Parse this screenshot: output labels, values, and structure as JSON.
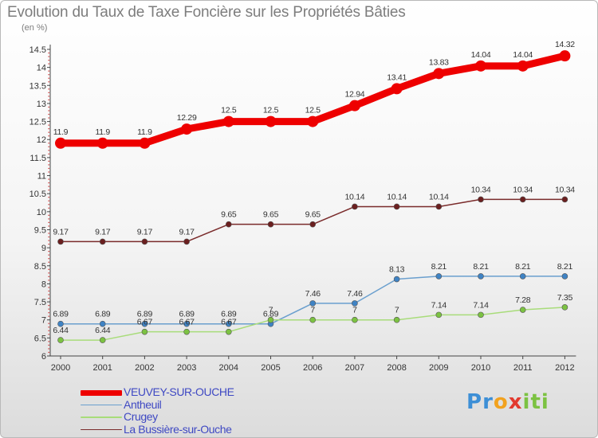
{
  "title": "Evolution du Taux de Taxe Foncière sur les Propriétés Bâties",
  "unit_label": "(en %)",
  "logo": {
    "text": "Proxiti",
    "letters": [
      {
        "ch": "P",
        "color": "#3d8fd6"
      },
      {
        "ch": "r",
        "color": "#3d8fd6"
      },
      {
        "ch": "o",
        "color": "#f2a21f"
      },
      {
        "ch": "x",
        "color": "#e23a2f"
      },
      {
        "ch": "i",
        "color": "#7cc242"
      },
      {
        "ch": "t",
        "color": "#7cc242"
      },
      {
        "ch": "i",
        "color": "#7cc242"
      }
    ]
  },
  "chart_data": {
    "type": "line",
    "categories": [
      "2000",
      "2001",
      "2002",
      "2003",
      "2004",
      "2005",
      "2006",
      "2007",
      "2008",
      "2009",
      "2010",
      "2011",
      "2012"
    ],
    "y_ticks": [
      "6",
      "6.5",
      "7",
      "7.5",
      "8",
      "8.5",
      "9",
      "9.5",
      "10",
      "10.5",
      "11",
      "11.5",
      "12",
      "12.5",
      "13",
      "13.5",
      "14",
      "14.5"
    ],
    "ylim": [
      6,
      14.5
    ],
    "grid": false,
    "legend_position": "bottom-left",
    "series": [
      {
        "name": "VEUVEY-SUR-OUCHE",
        "color": "#ee0000",
        "marker_color": "#ee0000",
        "width": 9,
        "marker_radius": 7,
        "values": [
          11.9,
          11.9,
          11.9,
          12.29,
          12.5,
          12.5,
          12.5,
          12.94,
          13.41,
          13.83,
          14.04,
          14.04,
          14.32
        ],
        "labels": [
          "11.9",
          "11.9",
          "11.9",
          "12.29",
          "12.5",
          "12.5",
          "12.5",
          "12.94",
          "13.41",
          "13.83",
          "14.04",
          "14.04",
          "14.32"
        ]
      },
      {
        "name": "Antheuil",
        "color": "#6a9fce",
        "marker_color": "#3f83c4",
        "width": 1.5,
        "marker_radius": 3.5,
        "values": [
          6.89,
          6.89,
          6.89,
          6.89,
          6.89,
          6.89,
          7.46,
          7.46,
          8.13,
          8.21,
          8.21,
          8.21,
          8.21
        ],
        "labels": [
          "6.89",
          "6.89",
          "6.89",
          "6.89",
          "6.89",
          "6.89",
          "7.46",
          "7.46",
          "8.13",
          "8.21",
          "8.21",
          "8.21",
          "8.21"
        ]
      },
      {
        "name": "Crugey",
        "color": "#a8dc7a",
        "marker_color": "#7cc242",
        "width": 1.5,
        "marker_radius": 3.5,
        "values": [
          6.44,
          6.44,
          6.67,
          6.67,
          6.67,
          7,
          7,
          7,
          7,
          7.14,
          7.14,
          7.28,
          7.35
        ],
        "labels": [
          "6.44",
          "6.44",
          "6.67",
          "6.67",
          "6.67",
          "7",
          "7",
          "7",
          "7",
          "7.14",
          "7.14",
          "7.28",
          "7.35"
        ]
      },
      {
        "name": "La Bussière-sur-Ouche",
        "color": "#7a2b2b",
        "marker_color": "#6b1f1f",
        "width": 1.5,
        "marker_radius": 3.5,
        "values": [
          9.17,
          9.17,
          9.17,
          9.17,
          9.65,
          9.65,
          9.65,
          10.14,
          10.14,
          10.14,
          10.34,
          10.34,
          10.34
        ],
        "labels": [
          "9.17",
          "9.17",
          "9.17",
          "9.17",
          "9.65",
          "9.65",
          "9.65",
          "10.14",
          "10.14",
          "10.14",
          "10.34",
          "10.34",
          "10.34"
        ]
      }
    ]
  }
}
